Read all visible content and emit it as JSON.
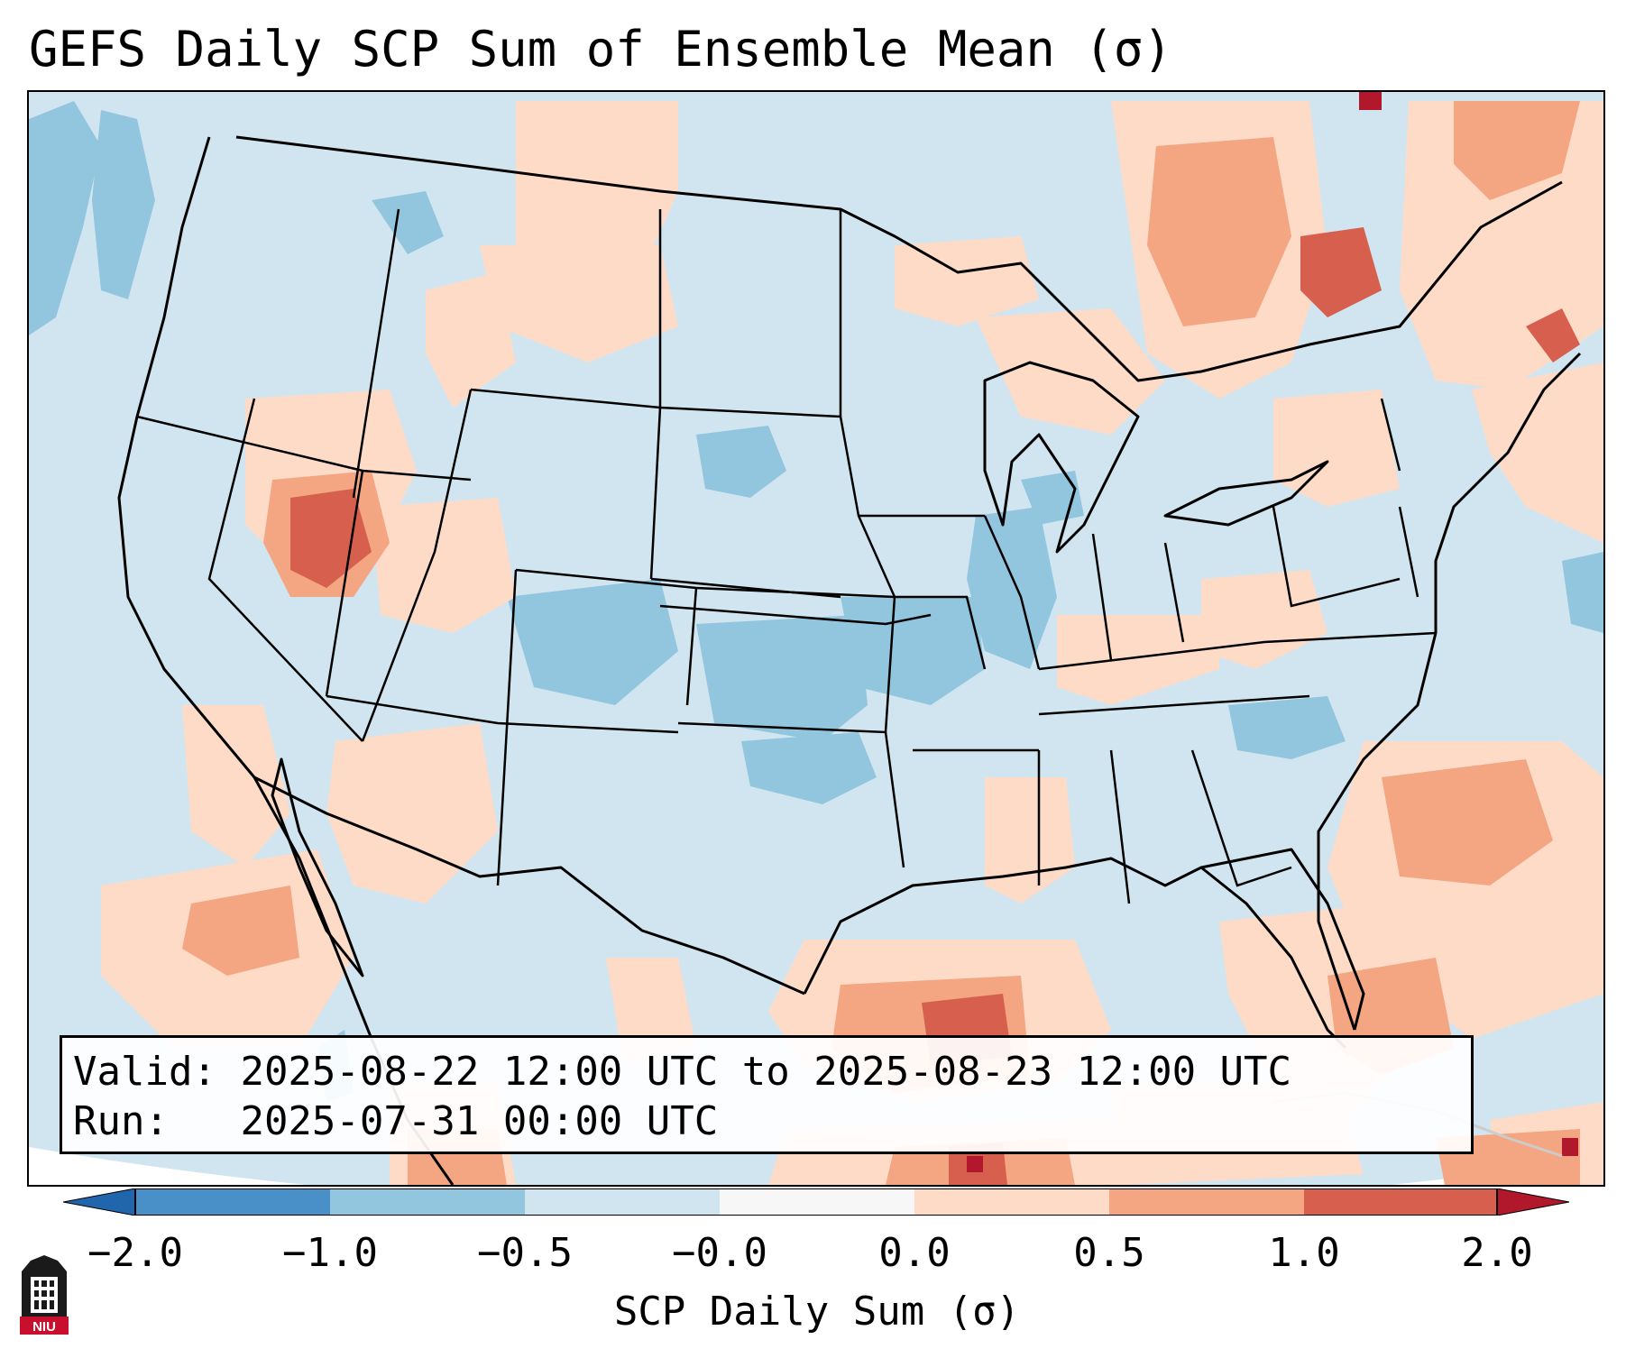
{
  "title": "GEFS Daily SCP Sum of Ensemble Mean (σ)",
  "info": {
    "valid_label": "Valid:",
    "valid_value": "2025-08-22 12:00 UTC to 2025-08-23 12:00 UTC",
    "run_label": "Run:",
    "run_value": "2025-07-31 00:00 UTC"
  },
  "colorbar": {
    "label": "SCP Daily Sum (σ)",
    "ticks": [
      "−2.0",
      "−1.0",
      "−0.5",
      "−0.0",
      "0.0",
      "0.5",
      "1.0",
      "2.0"
    ],
    "colors": [
      "#4a90c8",
      "#92c5de",
      "#d1e5f0",
      "#f7f7f7",
      "#fddbc7",
      "#f4a582",
      "#d6604d"
    ],
    "under_color": "#2166ac",
    "over_color": "#b2182b"
  },
  "map_colors": {
    "background": "#d1e5f0",
    "neg_1": "#92c5de",
    "pos_1": "#fddbc7",
    "pos_2": "#f4a582",
    "pos_3": "#d6604d",
    "pos_4": "#b2182b",
    "outside": "#ffffff"
  },
  "logo": {
    "text": "NIU",
    "color": "#c8102e"
  }
}
